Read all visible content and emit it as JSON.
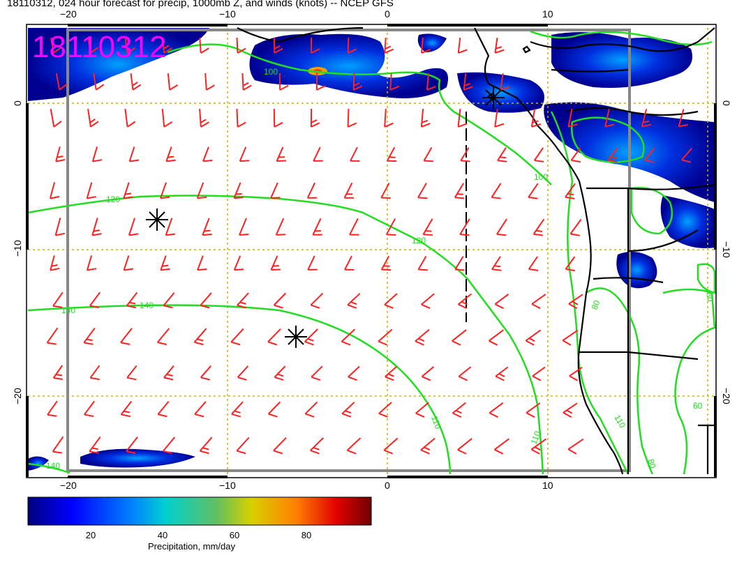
{
  "title": "18110312, 024 hour forecast for precip, 1000mb Z, and winds (knots) -- NCEP GFS",
  "date_stamp": "18110312",
  "axes": {
    "top_lon_labels": [
      "−20",
      "−10",
      "0",
      "10"
    ],
    "bottom_lon_labels": [
      "−20",
      "−10",
      "0",
      "10"
    ],
    "left_lat_labels": [
      "0",
      "−10",
      "−20"
    ],
    "right_lat_labels": [
      "0",
      "−10",
      "−20"
    ]
  },
  "contour_labels": [
    "100",
    "120",
    "120",
    "140",
    "140",
    "100",
    "140",
    "110",
    "110",
    "80",
    "60",
    "60",
    "80",
    "110"
  ],
  "colorbar": {
    "title": "Precipitation, mm/day",
    "ticks": [
      "20",
      "40",
      "60",
      "80"
    ],
    "range": [
      0,
      100
    ]
  },
  "colors": {
    "wind_barbs": "#ff2020",
    "height_contours": "#22dd22",
    "grid": "#c8b400",
    "coastline": "#000000",
    "date_stamp": "#ff00ff"
  },
  "markers": [
    "pressure-center-star",
    "pressure-center-star",
    "pressure-center-star"
  ]
}
